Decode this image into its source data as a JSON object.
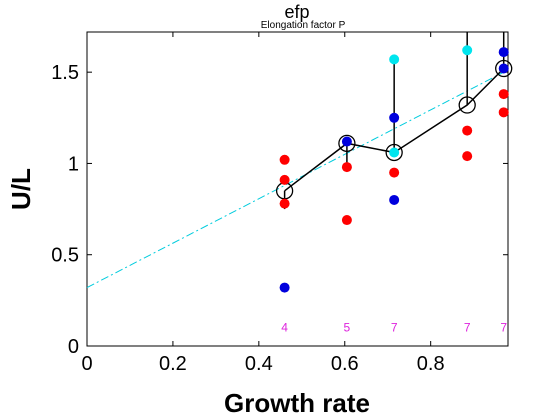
{
  "chart_data": {
    "type": "scatter",
    "title": "efp",
    "subtitle": "Elongation factor P",
    "xlabel": "Growth rate",
    "ylabel": "U/L",
    "xlim": [
      0,
      0.98
    ],
    "ylim": [
      0,
      1.72
    ],
    "xticks": [
      0,
      0.2,
      0.4,
      0.6,
      0.8
    ],
    "xtick_labels": [
      "0",
      "0.2",
      "0.4",
      "0.6",
      "0.8"
    ],
    "yticks": [
      0,
      0.5,
      1,
      1.5
    ],
    "ytick_labels": [
      "0",
      "0.5",
      "1",
      "1.5"
    ],
    "grid": false,
    "series": [
      {
        "color": "#ff0000",
        "points": [
          {
            "x": 0.46,
            "y": 1.02
          },
          {
            "x": 0.46,
            "y": 0.91
          },
          {
            "x": 0.46,
            "y": 0.78
          },
          {
            "x": 0.605,
            "y": 0.98
          },
          {
            "x": 0.605,
            "y": 0.69
          },
          {
            "x": 0.715,
            "y": 0.95
          },
          {
            "x": 0.885,
            "y": 1.18
          },
          {
            "x": 0.885,
            "y": 1.04
          },
          {
            "x": 0.97,
            "y": 1.38
          },
          {
            "x": 0.97,
            "y": 1.28
          }
        ]
      },
      {
        "color": "#0000dd",
        "points": [
          {
            "x": 0.46,
            "y": 0.32
          },
          {
            "x": 0.605,
            "y": 1.12
          },
          {
            "x": 0.715,
            "y": 1.25
          },
          {
            "x": 0.715,
            "y": 0.8
          },
          {
            "x": 0.97,
            "y": 1.61
          },
          {
            "x": 0.97,
            "y": 1.52
          }
        ]
      },
      {
        "color": "#00e5ee",
        "points": [
          {
            "x": 0.715,
            "y": 1.57
          },
          {
            "x": 0.715,
            "y": 1.06
          },
          {
            "x": 0.885,
            "y": 1.62
          }
        ]
      }
    ],
    "mean_line": {
      "color": "#000000",
      "points": [
        {
          "x": 0.46,
          "y": 0.85,
          "err_low": 0.1,
          "err_high": 0.0
        },
        {
          "x": 0.605,
          "y": 1.11,
          "err_low": 0.13,
          "err_high": 0.0
        },
        {
          "x": 0.715,
          "y": 1.06,
          "err_low": 0.0,
          "err_high": 0.51
        },
        {
          "x": 0.885,
          "y": 1.32,
          "err_low": 0.0,
          "err_high": 0.4
        },
        {
          "x": 0.97,
          "y": 1.52,
          "err_low": 0.0,
          "err_high": 0.2
        }
      ]
    },
    "fit_line": {
      "color": "#00ccdd",
      "style": "dashed",
      "x": [
        0,
        0.97
      ],
      "y": [
        0.32,
        1.5
      ]
    },
    "counts": [
      {
        "x": 0.46,
        "label": "4"
      },
      {
        "x": 0.605,
        "label": "5"
      },
      {
        "x": 0.715,
        "label": "7"
      },
      {
        "x": 0.885,
        "label": "7"
      },
      {
        "x": 0.97,
        "label": "7"
      }
    ],
    "counts_y": 0.1
  }
}
